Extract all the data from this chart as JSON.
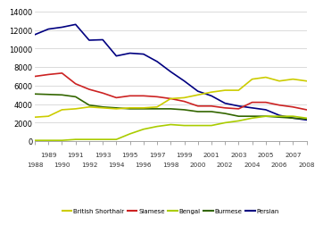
{
  "years": [
    1988,
    1989,
    1990,
    1991,
    1992,
    1993,
    1994,
    1995,
    1996,
    1997,
    1998,
    1999,
    2000,
    2001,
    2002,
    2003,
    2004,
    2005,
    2006,
    2007,
    2008
  ],
  "british_shorthair": [
    2600,
    2700,
    3400,
    3500,
    3700,
    3600,
    3500,
    3600,
    3600,
    3700,
    4600,
    4700,
    5000,
    5300,
    5500,
    5500,
    6700,
    6900,
    6500,
    6700,
    6500
  ],
  "siamese": [
    7000,
    7200,
    7350,
    6200,
    5600,
    5200,
    4700,
    4900,
    4900,
    4800,
    4600,
    4300,
    3800,
    3800,
    3600,
    3500,
    4200,
    4200,
    3900,
    3700,
    3400
  ],
  "bengal": [
    100,
    100,
    100,
    200,
    200,
    200,
    200,
    800,
    1300,
    1600,
    1800,
    1700,
    1700,
    1700,
    2000,
    2200,
    2500,
    2700,
    2700,
    2700,
    2500
  ],
  "burmese": [
    5100,
    5050,
    5000,
    4800,
    3900,
    3700,
    3600,
    3500,
    3500,
    3500,
    3500,
    3400,
    3200,
    3200,
    3000,
    2700,
    2700,
    2700,
    2600,
    2500,
    2400
  ],
  "persian": [
    11500,
    12100,
    12300,
    12600,
    10900,
    10950,
    9200,
    9500,
    9400,
    8600,
    7500,
    6500,
    5400,
    4900,
    4100,
    3800,
    3600,
    3400,
    2800,
    2500,
    2300
  ],
  "colors": {
    "british_shorthair": "#cccc00",
    "siamese": "#cc2222",
    "bengal": "#aacc00",
    "burmese": "#336600",
    "persian": "#000080"
  },
  "ylim": [
    0,
    14000
  ],
  "yticks": [
    0,
    2000,
    4000,
    6000,
    8000,
    10000,
    12000,
    14000
  ],
  "odd_years": [
    1989,
    1991,
    1993,
    1995,
    1997,
    1999,
    2001,
    2003,
    2005,
    2007
  ],
  "even_years": [
    1988,
    1990,
    1992,
    1994,
    1996,
    1998,
    2000,
    2002,
    2004,
    2006,
    2008
  ]
}
